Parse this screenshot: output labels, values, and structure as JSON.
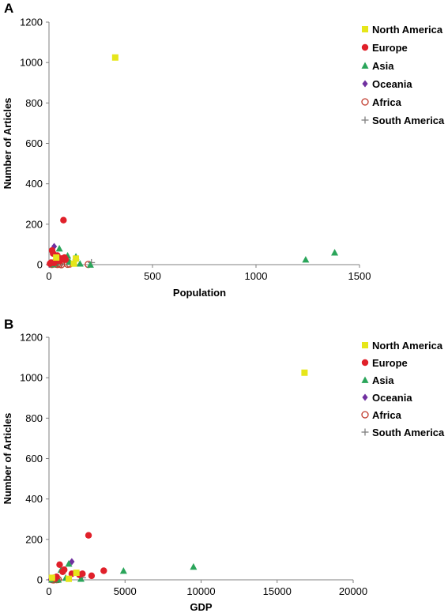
{
  "chart_data": [
    {
      "panel": "A",
      "type": "scatter",
      "title": "",
      "xlabel": "Population",
      "ylabel": "Number of Articles",
      "xlim": [
        0,
        1500
      ],
      "ylim": [
        0,
        1200
      ],
      "xticks": [
        0,
        500,
        1000,
        1500
      ],
      "yticks": [
        0,
        200,
        400,
        600,
        800,
        1000,
        1200
      ],
      "grid": false,
      "legend_position": "top-right",
      "series": [
        {
          "name": "North America",
          "marker": "square",
          "color": "#e6e61a",
          "points": [
            [
              320,
              1025
            ],
            [
              35,
              35
            ],
            [
              120,
              5
            ],
            [
              130,
              30
            ]
          ]
        },
        {
          "name": "Europe",
          "marker": "circle",
          "color": "#e0202a",
          "points": [
            [
              70,
              220
            ],
            [
              15,
              70
            ],
            [
              20,
              55
            ],
            [
              40,
              45
            ],
            [
              60,
              30
            ],
            [
              80,
              25
            ],
            [
              55,
              20
            ],
            [
              10,
              10
            ],
            [
              5,
              5
            ],
            [
              30,
              15
            ],
            [
              75,
              35
            ],
            [
              25,
              8
            ]
          ]
        },
        {
          "name": "Asia",
          "marker": "triangle",
          "color": "#2aa55a",
          "points": [
            [
              1380,
              60
            ],
            [
              1240,
              25
            ],
            [
              50,
              80
            ],
            [
              130,
              40
            ],
            [
              100,
              15
            ],
            [
              30,
              10
            ],
            [
              150,
              5
            ],
            [
              200,
              0
            ],
            [
              20,
              2
            ],
            [
              90,
              45
            ]
          ]
        },
        {
          "name": "Oceania",
          "marker": "diamond",
          "color": "#7030a0",
          "points": [
            [
              25,
              90
            ],
            [
              5,
              3
            ],
            [
              4,
              1
            ]
          ]
        },
        {
          "name": "Africa",
          "marker": "open-circle",
          "color": "#c0392b",
          "points": [
            [
              190,
              1
            ],
            [
              50,
              2
            ],
            [
              30,
              3
            ],
            [
              90,
              2
            ],
            [
              15,
              1
            ],
            [
              100,
              3
            ],
            [
              40,
              1
            ],
            [
              60,
              0
            ]
          ]
        },
        {
          "name": "South America",
          "marker": "plus",
          "color": "#808080",
          "points": [
            [
              205,
              10
            ],
            [
              40,
              5
            ],
            [
              30,
              3
            ],
            [
              17,
              2
            ],
            [
              10,
              1
            ],
            [
              60,
              4
            ]
          ]
        }
      ]
    },
    {
      "panel": "B",
      "type": "scatter",
      "title": "",
      "xlabel": "GDP",
      "ylabel": "Number of Articles",
      "xlim": [
        0,
        20000
      ],
      "ylim": [
        0,
        1200
      ],
      "xticks": [
        0,
        5000,
        10000,
        15000,
        20000
      ],
      "yticks": [
        0,
        200,
        400,
        600,
        800,
        1000,
        1200
      ],
      "grid": false,
      "legend_position": "top-right",
      "series": [
        {
          "name": "North America",
          "marker": "square",
          "color": "#e6e61a",
          "points": [
            [
              16800,
              1025
            ],
            [
              1800,
              35
            ],
            [
              1300,
              5
            ],
            [
              200,
              10
            ]
          ]
        },
        {
          "name": "Europe",
          "marker": "circle",
          "color": "#e0202a",
          "points": [
            [
              2600,
              220
            ],
            [
              3600,
              45
            ],
            [
              700,
              75
            ],
            [
              2200,
              30
            ],
            [
              2800,
              20
            ],
            [
              1500,
              30
            ],
            [
              2000,
              25
            ],
            [
              500,
              15
            ],
            [
              300,
              10
            ],
            [
              900,
              40
            ],
            [
              400,
              5
            ],
            [
              1000,
              50
            ]
          ]
        },
        {
          "name": "Asia",
          "marker": "triangle",
          "color": "#2aa55a",
          "points": [
            [
              9500,
              65
            ],
            [
              4900,
              45
            ],
            [
              800,
              50
            ],
            [
              1300,
              80
            ],
            [
              2100,
              5
            ],
            [
              1100,
              10
            ],
            [
              400,
              3
            ],
            [
              600,
              1
            ],
            [
              200,
              2
            ]
          ]
        },
        {
          "name": "Oceania",
          "marker": "diamond",
          "color": "#7030a0",
          "points": [
            [
              1500,
              90
            ],
            [
              200,
              3
            ],
            [
              100,
              1
            ]
          ]
        },
        {
          "name": "Africa",
          "marker": "open-circle",
          "color": "#c0392b",
          "points": [
            [
              400,
              3
            ],
            [
              200,
              1
            ],
            [
              600,
              2
            ],
            [
              300,
              0
            ],
            [
              500,
              1
            ],
            [
              250,
              2
            ]
          ]
        },
        {
          "name": "South America",
          "marker": "plus",
          "color": "#808080",
          "points": [
            [
              2200,
              10
            ],
            [
              500,
              5
            ],
            [
              300,
              3
            ],
            [
              400,
              2
            ],
            [
              250,
              1
            ]
          ]
        }
      ]
    }
  ]
}
